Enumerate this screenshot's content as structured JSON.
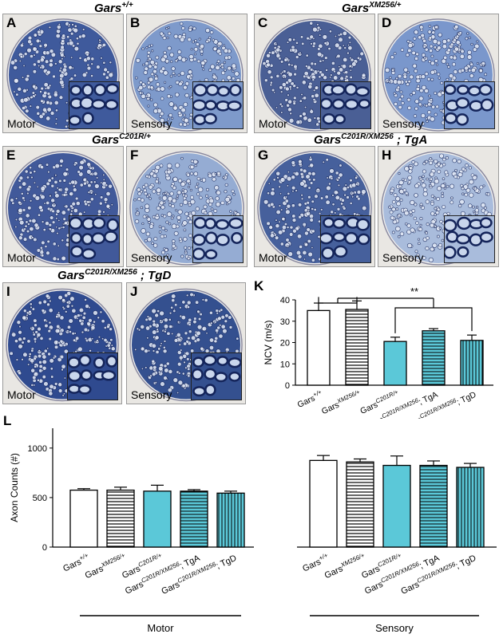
{
  "genotype_titles": [
    {
      "base": "Gars",
      "sup": "+/+",
      "suffix": ""
    },
    {
      "base": "Gars",
      "sup": "XM256/+",
      "suffix": ""
    },
    {
      "base": "Gars",
      "sup": "C201R/+",
      "suffix": ""
    },
    {
      "base": "Gars",
      "sup": "C201R/XM256",
      "suffix": " ; TgA"
    },
    {
      "base": "Gars",
      "sup": "C201R/XM256",
      "suffix": " ; TgD"
    }
  ],
  "panels": [
    {
      "letter": "A",
      "label": "Motor",
      "tone": "#3f5a9c"
    },
    {
      "letter": "B",
      "label": "Sensory",
      "tone": "#7e9acb"
    },
    {
      "letter": "C",
      "label": "Motor",
      "tone": "#4a5f95"
    },
    {
      "letter": "D",
      "label": "Sensory",
      "tone": "#7a97cc"
    },
    {
      "letter": "E",
      "label": "Motor",
      "tone": "#41599a"
    },
    {
      "letter": "F",
      "label": "Sensory",
      "tone": "#95acd3"
    },
    {
      "letter": "G",
      "label": "Motor",
      "tone": "#46609c"
    },
    {
      "letter": "H",
      "label": "Sensory",
      "tone": "#a9bcdc"
    },
    {
      "letter": "I",
      "label": "Motor",
      "tone": "#2f4a8f"
    },
    {
      "letter": "J",
      "label": "Sensory",
      "tone": "#34508f"
    }
  ],
  "panel_K_letter": "K",
  "panel_L_letter": "L",
  "significance_label": "**",
  "chart_data": [
    {
      "type": "bar",
      "ylabel": "NCV (m/s)",
      "ylim": [
        0,
        40
      ],
      "yticks": [
        "0",
        "10",
        "20",
        "30",
        "40"
      ],
      "categories": [
        {
          "base": "Gars",
          "sup": "+/+",
          "suffix": ""
        },
        {
          "base": "Gars",
          "sup": "XM256/+",
          "suffix": ""
        },
        {
          "base": "Gars",
          "sup": "C201R/+",
          "suffix": ""
        },
        {
          "base": "Gars",
          "sup": "C201R/XM256",
          "suffix": "; TgA"
        },
        {
          "base": "Gars",
          "sup": "C201R/XM256",
          "suffix": "; TgD"
        }
      ],
      "values": [
        35,
        35.5,
        20.5,
        25.5,
        21
      ],
      "errors": [
        3.5,
        4,
        2,
        1,
        2.5
      ],
      "styles": [
        "white",
        "hstripe",
        "cyan",
        "cyan-hstripe",
        "cyan-vstripe"
      ],
      "significance": "**"
    },
    {
      "type": "bar",
      "ylabel": "Axon Counts (#)",
      "ylim": [
        0,
        1200
      ],
      "yticks": [
        "0",
        "500",
        "1000"
      ],
      "groups": [
        "Motor",
        "Sensory"
      ],
      "categories": [
        {
          "base": "Gars",
          "sup": "+/+",
          "suffix": ""
        },
        {
          "base": "Gars",
          "sup": "XM256/+",
          "suffix": ""
        },
        {
          "base": "Gars",
          "sup": "C201R/+",
          "suffix": ""
        },
        {
          "base": "Gars",
          "sup": "C201R/XM256",
          "suffix": "; TgA"
        },
        {
          "base": "Gars",
          "sup": "C201R/XM256",
          "suffix": "; TgD"
        }
      ],
      "series": [
        {
          "values": [
            575,
            575,
            565,
            565,
            545
          ],
          "errors": [
            15,
            30,
            60,
            15,
            20
          ]
        },
        {
          "values": [
            875,
            860,
            825,
            825,
            805
          ],
          "errors": [
            50,
            30,
            95,
            45,
            40
          ]
        }
      ],
      "styles": [
        "white",
        "hstripe",
        "cyan",
        "cyan-hstripe",
        "cyan-vstripe"
      ]
    }
  ],
  "colors": {
    "cyan": "#5bc8d8",
    "stain_dark": "#14245a",
    "stain_light": "#c9d6ec"
  }
}
